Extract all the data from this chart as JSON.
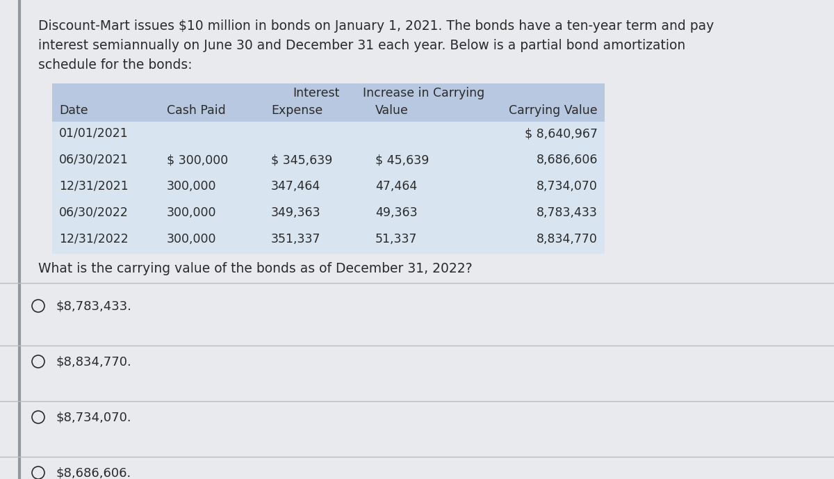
{
  "bg_color": "#d4d8dd",
  "panel_bg": "#e8eaed",
  "white_bg": "#f0f2f4",
  "intro_text_lines": [
    "Discount-Mart issues $10 million in bonds on January 1, 2021. The bonds have a ten-year term and pay",
    "interest semiannually on June 30 and December 31 each year. Below is a partial bond amortization",
    "schedule for the bonds:"
  ],
  "table_header_bg": "#b8c8e0",
  "table_row_bg": "#d8e4f0",
  "table_col1_header": "Date",
  "table_col2_header": "Cash Paid",
  "table_col3_header1": "Interest",
  "table_col3_header2": "Expense",
  "table_col4_header1": "Increase in Carrying",
  "table_col4_header2": "Value",
  "table_col5_header": "Carrying Value",
  "table_data": [
    [
      "01/01/2021",
      "",
      "",
      "",
      "$ 8,640,967"
    ],
    [
      "06/30/2021",
      "$ 300,000",
      "$ 345,639",
      "$ 45,639",
      "8,686,606"
    ],
    [
      "12/31/2021",
      "300,000",
      "347,464",
      "47,464",
      "8,734,070"
    ],
    [
      "06/30/2022",
      "300,000",
      "349,363",
      "49,363",
      "8,783,433"
    ],
    [
      "12/31/2022",
      "300,000",
      "351,337",
      "51,337",
      "8,834,770"
    ]
  ],
  "question_text": "What is the carrying value of the bonds as of December 31, 2022?",
  "answer_options": [
    "$8,783,433.",
    "$8,834,770.",
    "$8,734,070.",
    "$8,686,606."
  ],
  "divider_color": "#b8bcc0",
  "left_border_color": "#9098a0",
  "text_color": "#2a2a2a",
  "font_size_intro": 13.5,
  "font_size_table_header": 12.5,
  "font_size_table_data": 12.5,
  "font_size_question": 13.5,
  "font_size_answers": 13.0
}
